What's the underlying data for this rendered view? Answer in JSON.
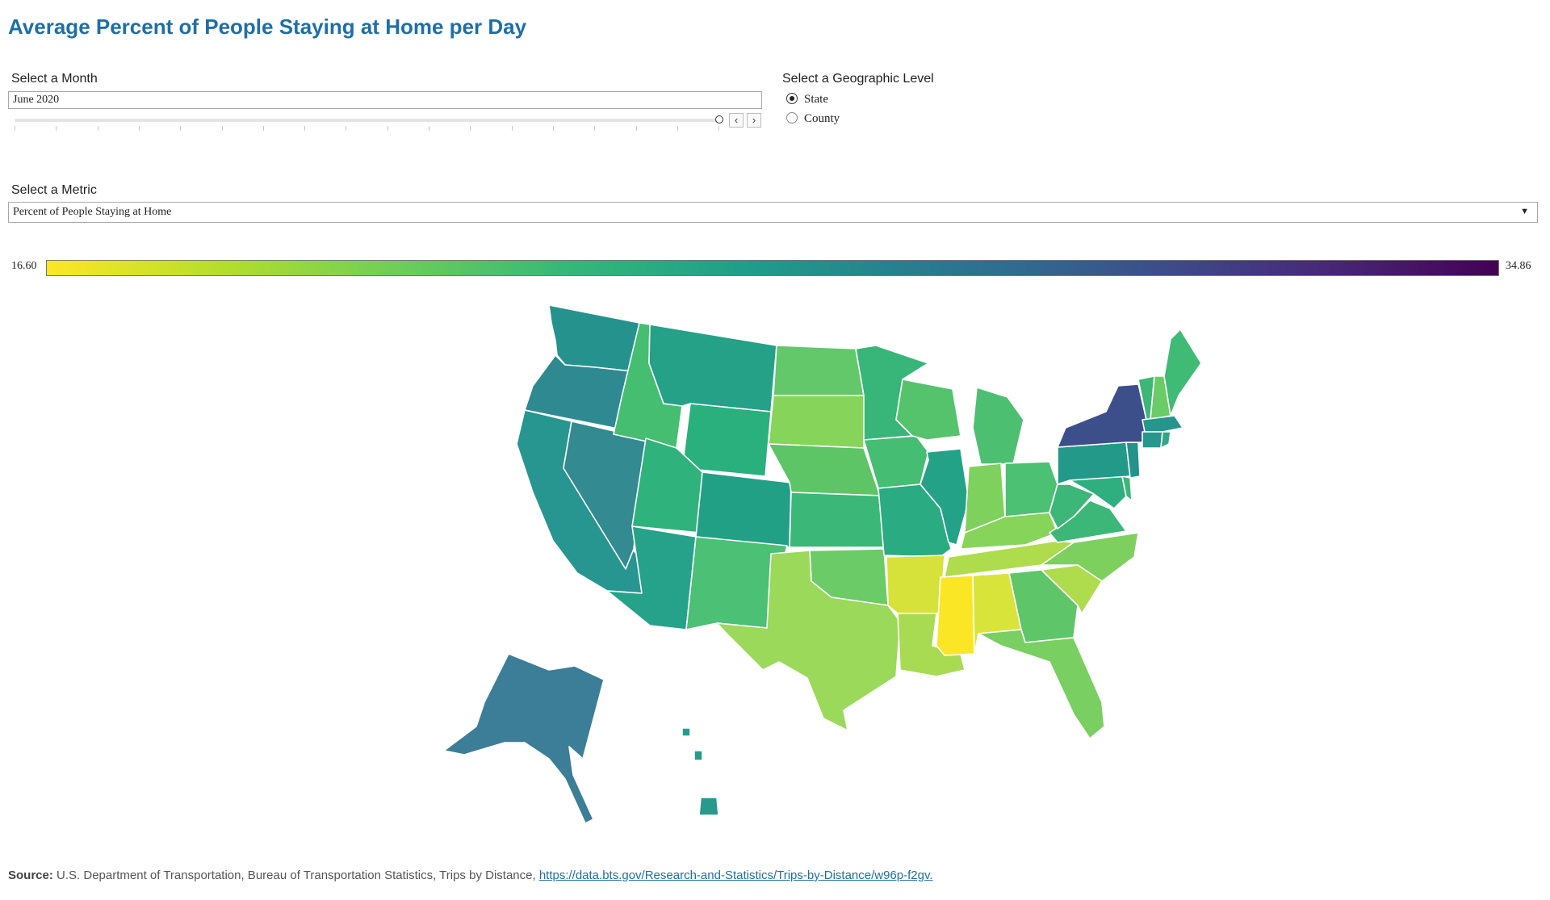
{
  "title": "Average Percent of People Staying at Home per Day",
  "month_control": {
    "label": "Select a Month",
    "value": "June 2020",
    "prev_icon": "chevron-left-icon",
    "next_icon": "chevron-right-icon",
    "prev_glyph": "‹",
    "next_glyph": "›"
  },
  "geo_control": {
    "label": "Select a Geographic Level",
    "options": [
      {
        "label": "State",
        "selected": true
      },
      {
        "label": "County",
        "selected": false
      }
    ]
  },
  "metric_control": {
    "label": "Select a Metric",
    "value": "Percent of People Staying at Home",
    "caret": "▼"
  },
  "legend": {
    "min": "16.60",
    "max": "34.86",
    "colors": [
      "#fde725",
      "#b5de2b",
      "#6ece58",
      "#35b779",
      "#1f9e89",
      "#26828e",
      "#31688e",
      "#3e4989",
      "#482878",
      "#440154"
    ]
  },
  "source": {
    "label": "Source:",
    "text": "U.S. Department of Transportation, Bureau of Transportation Statistics, Trips by Distance,",
    "link": "https://data.bts.gov/Research-and-Statistics/Trips-by-Distance/w96p-f2gv."
  }
}
